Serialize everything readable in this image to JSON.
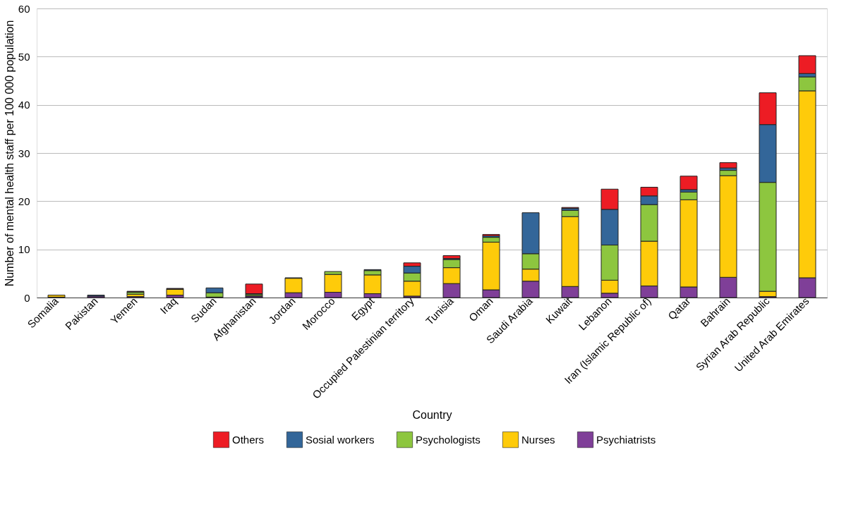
{
  "chart_data": {
    "type": "bar",
    "stacked": true,
    "xlabel": "Country",
    "ylabel": "Number of mental health staff per 100 000 population",
    "categories": [
      "Somalia",
      "Pakistan",
      "Yemen",
      "Iraq",
      "Sudan",
      "Afghanistan",
      "Jordan",
      "Morocco",
      "Egypt",
      "Occupied Palestinian territory",
      "Tunisia",
      "Oman",
      "Saudi Arabia",
      "Kuwait",
      "Lebanon",
      "Iran (Islamic Republic of)",
      "Qatar",
      "Bahrain",
      "Syrian Arab Republic",
      "United Arab Emirates"
    ],
    "series": [
      {
        "name": "Psychiatrists",
        "color": "#7f3f98",
        "values": [
          0.1,
          0.3,
          0.2,
          0.5,
          0.1,
          0.3,
          1.0,
          1.1,
          0.8,
          0.3,
          2.9,
          1.6,
          3.4,
          2.3,
          0.9,
          2.4,
          2.2,
          4.2,
          0.2,
          4.1
        ]
      },
      {
        "name": "Nurses",
        "color": "#fecb0a",
        "values": [
          0.4,
          null,
          0.5,
          1.2,
          0,
          0.1,
          3.0,
          3.7,
          3.9,
          3.1,
          3.3,
          9.9,
          2.5,
          14.5,
          2.7,
          9.3,
          18.1,
          21.1,
          1.1,
          38.8
        ]
      },
      {
        "name": "Psychologists",
        "color": "#8dc63f",
        "values": [
          0,
          0,
          0.4,
          null,
          0.9,
          0.3,
          0,
          0.6,
          0.9,
          1.7,
          1.7,
          1.0,
          3.2,
          1.3,
          7.3,
          7.6,
          1.6,
          1.1,
          22.6,
          2.9
        ]
      },
      {
        "name": "Sosial workers",
        "color": "#336699",
        "values": [
          0,
          0.2,
          0.1,
          0.1,
          1.0,
          0.1,
          0.1,
          0,
          0.2,
          1.4,
          0.2,
          0.3,
          8.5,
          0.4,
          7.4,
          1.8,
          0.5,
          0.5,
          12.0,
          0.7
        ]
      },
      {
        "name": "Others",
        "color": "#ed1c24",
        "values": [
          0,
          0,
          0.1,
          0.1,
          0,
          2.0,
          0,
          0,
          0,
          0.7,
          0.6,
          0.3,
          0,
          0.2,
          4.2,
          1.8,
          2.8,
          1.1,
          6.6,
          3.7
        ]
      }
    ],
    "ylim": [
      0,
      60
    ],
    "yticks": [
      0,
      10,
      20,
      30,
      40,
      50,
      60
    ],
    "grid": "y",
    "legend": "bottom"
  }
}
